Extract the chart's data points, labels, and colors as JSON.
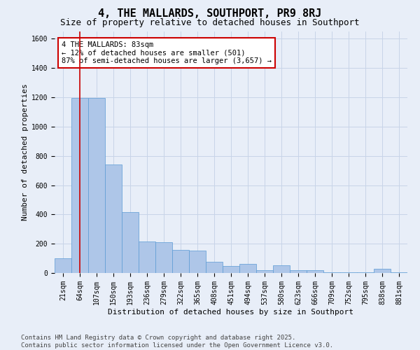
{
  "title": "4, THE MALLARDS, SOUTHPORT, PR9 8RJ",
  "subtitle": "Size of property relative to detached houses in Southport",
  "xlabel": "Distribution of detached houses by size in Southport",
  "ylabel": "Number of detached properties",
  "categories": [
    "21sqm",
    "64sqm",
    "107sqm",
    "150sqm",
    "193sqm",
    "236sqm",
    "279sqm",
    "322sqm",
    "365sqm",
    "408sqm",
    "451sqm",
    "494sqm",
    "537sqm",
    "580sqm",
    "623sqm",
    "666sqm",
    "709sqm",
    "752sqm",
    "795sqm",
    "838sqm",
    "881sqm"
  ],
  "values": [
    100,
    1195,
    1195,
    740,
    415,
    215,
    210,
    160,
    155,
    75,
    50,
    60,
    20,
    55,
    20,
    20,
    5,
    5,
    5,
    30,
    5
  ],
  "bar_color": "#aec6e8",
  "bar_edge_color": "#5b9bd5",
  "grid_color": "#c8d4e8",
  "background_color": "#e8eef8",
  "vline_x_index": 1,
  "vline_color": "#cc0000",
  "annotation_text": "4 THE MALLARDS: 83sqm\n← 12% of detached houses are smaller (501)\n87% of semi-detached houses are larger (3,657) →",
  "annotation_box_color": "#ffffff",
  "annotation_box_edge": "#cc0000",
  "ylim": [
    0,
    1650
  ],
  "yticks": [
    0,
    200,
    400,
    600,
    800,
    1000,
    1200,
    1400,
    1600
  ],
  "footer_line1": "Contains HM Land Registry data © Crown copyright and database right 2025.",
  "footer_line2": "Contains public sector information licensed under the Open Government Licence v3.0.",
  "title_fontsize": 11,
  "subtitle_fontsize": 9,
  "axis_label_fontsize": 8,
  "tick_fontsize": 7,
  "annotation_fontsize": 7.5,
  "footer_fontsize": 6.5
}
